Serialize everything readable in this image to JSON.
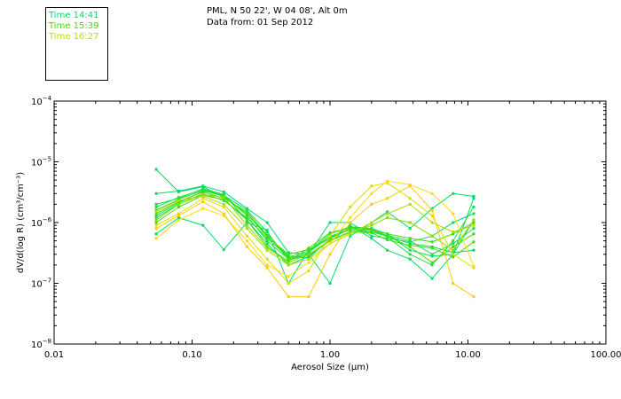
{
  "header": {
    "location": "PML, N 50 22', W 04 08', Alt 0m",
    "date": "Data from: 01 Sep 2012"
  },
  "legend": [
    {
      "label": "Time 14:41",
      "color": "#00dd66"
    },
    {
      "label": "Time 15:39",
      "color": "#44dd00"
    },
    {
      "label": "Time 16:27",
      "color": "#bbdd00"
    }
  ],
  "chart_data": {
    "type": "line",
    "title": "",
    "xlabel": "Aerosol Size (μm)",
    "ylabel": "dV/d(log R) (cm³/cm⁻³)",
    "x_scale": "log",
    "y_scale": "log",
    "xlim": [
      0.01,
      100
    ],
    "ylim": [
      1e-08,
      0.0001
    ],
    "x_ticks": [
      0.01,
      0.1,
      1,
      10,
      100
    ],
    "x_tick_labels": [
      "0.01",
      "0.10",
      "1.00",
      "10.00",
      "100.00"
    ],
    "y_ticks": [
      1e-08,
      1e-07,
      1e-06,
      1e-05,
      0.0001
    ],
    "y_tick_base": "10",
    "y_tick_exponents": [
      "−8",
      "−7",
      "−6",
      "−5",
      "−4"
    ],
    "x": [
      0.055,
      0.08,
      0.12,
      0.17,
      0.25,
      0.35,
      0.5,
      0.7,
      1.0,
      1.4,
      2.0,
      2.6,
      3.8,
      5.5,
      7.8,
      11.0
    ],
    "series": [
      {
        "name": "s1",
        "color": "#00dd66",
        "values": [
          7.5e-06,
          3.2e-06,
          3.9e-06,
          2.6e-06,
          1.4e-06,
          6e-07,
          2.8e-07,
          2.6e-07,
          5.5e-07,
          8e-07,
          7e-07,
          6e-07,
          4.5e-07,
          4e-07,
          3.2e-07,
          3.5e-07
        ]
      },
      {
        "name": "s2",
        "color": "#00dd66",
        "values": [
          2e-06,
          2.5e-06,
          3.6e-06,
          2.9e-06,
          1.1e-06,
          4.5e-07,
          2e-07,
          2.8e-07,
          5e-07,
          8.5e-07,
          8e-07,
          6.5e-07,
          3.5e-07,
          2.8e-07,
          3e-07,
          2.5e-06
        ]
      },
      {
        "name": "s3",
        "color": "#00dd66",
        "values": [
          1.3e-06,
          2.1e-06,
          3.3e-06,
          2.8e-06,
          1.6e-06,
          7e-07,
          2.4e-07,
          3e-07,
          1e-06,
          1e-06,
          6e-07,
          5.5e-07,
          4.8e-07,
          6e-07,
          1e-06,
          1.4e-06
        ]
      },
      {
        "name": "s4",
        "color": "#00dd66",
        "values": [
          3e-06,
          3.3e-06,
          4e-06,
          3.2e-06,
          1.7e-06,
          1e-06,
          3.2e-07,
          3e-07,
          1e-07,
          6e-07,
          1e-06,
          1.5e-06,
          8e-07,
          1.7e-06,
          3e-06,
          2.7e-06
        ]
      },
      {
        "name": "s5",
        "color": "#00dd66",
        "values": [
          6.5e-07,
          1.2e-06,
          9e-07,
          3.6e-07,
          1e-06,
          7.5e-07,
          1e-07,
          3.5e-07,
          5.5e-07,
          9e-07,
          5.5e-07,
          3.5e-07,
          2.5e-07,
          1.2e-07,
          3e-07,
          1.1e-06
        ]
      },
      {
        "name": "s6",
        "color": "#22dd44",
        "values": [
          1.8e-06,
          2.6e-06,
          3.5e-06,
          2.8e-06,
          1.3e-06,
          5e-07,
          2.5e-07,
          3.2e-07,
          6e-07,
          7.5e-07,
          7e-07,
          6.2e-07,
          5e-07,
          3e-07,
          4.5e-07,
          8e-07
        ]
      },
      {
        "name": "s7",
        "color": "#22dd44",
        "values": [
          1.2e-06,
          2e-06,
          3e-06,
          2.3e-06,
          1.2e-06,
          5.5e-07,
          2.7e-07,
          3.4e-07,
          6.5e-07,
          8.5e-07,
          7.5e-07,
          5.8e-07,
          3e-07,
          2e-07,
          5e-07,
          1.8e-06
        ]
      },
      {
        "name": "s8",
        "color": "#44dd00",
        "values": [
          1.6e-06,
          2.4e-06,
          3.4e-06,
          2.7e-06,
          1.4e-06,
          5.8e-07,
          3e-07,
          3.6e-07,
          5.8e-07,
          8e-07,
          7.5e-07,
          6.5e-07,
          5.5e-07,
          4.8e-07,
          6.5e-07,
          1e-06
        ]
      },
      {
        "name": "s9",
        "color": "#44dd00",
        "values": [
          1e-06,
          1.8e-06,
          2.8e-06,
          2.4e-06,
          1.1e-06,
          4e-07,
          2.3e-07,
          3.8e-07,
          6.8e-07,
          8.2e-07,
          7.8e-07,
          6e-07,
          4e-07,
          2.2e-07,
          4e-07,
          6.5e-07
        ]
      },
      {
        "name": "s10",
        "color": "#44dd00",
        "values": [
          1.4e-06,
          2.2e-06,
          3.2e-06,
          2.5e-06,
          1.5e-06,
          6.2e-07,
          2.6e-07,
          2.9e-07,
          5.2e-07,
          7e-07,
          6.8e-07,
          5.2e-07,
          4.2e-07,
          3.8e-07,
          2.7e-07,
          4.8e-07
        ]
      },
      {
        "name": "s11",
        "color": "#88dd00",
        "values": [
          1.1e-06,
          2e-06,
          2.9e-06,
          2.6e-06,
          9e-07,
          3.8e-07,
          2.2e-07,
          3e-07,
          5e-07,
          6.8e-07,
          9e-07,
          1.2e-06,
          1e-06,
          6e-07,
          3.5e-07,
          1.1e-06
        ]
      },
      {
        "name": "s12",
        "color": "#aadd00",
        "values": [
          1.5e-06,
          2.3e-06,
          2.7e-06,
          2e-06,
          8e-07,
          3.5e-07,
          2e-07,
          2.5e-07,
          4.5e-07,
          6.5e-07,
          1e-06,
          1.4e-06,
          2e-06,
          1e-06,
          7e-07,
          9e-07
        ]
      },
      {
        "name": "s13",
        "color": "#dddd00",
        "values": [
          9e-07,
          1.4e-06,
          2.5e-06,
          1.8e-06,
          6e-07,
          2.5e-07,
          1e-07,
          1.6e-07,
          6e-07,
          1.8e-06,
          4e-06,
          4.5e-06,
          2.5e-06,
          1.3e-06,
          3e-07,
          1.8e-07
        ]
      },
      {
        "name": "s14",
        "color": "#ffdd00",
        "values": [
          5.5e-07,
          1.1e-06,
          1.7e-06,
          1.3e-06,
          5e-07,
          2e-07,
          1.3e-07,
          2.2e-07,
          4.5e-07,
          1.2e-06,
          3e-06,
          4.8e-06,
          4.2e-06,
          3e-06,
          1.4e-06,
          1.9e-07
        ]
      },
      {
        "name": "s15",
        "color": "#ffcc00",
        "values": [
          8e-07,
          1.3e-06,
          2.2e-06,
          1.4e-06,
          4e-07,
          1.8e-07,
          6e-08,
          6e-08,
          3e-07,
          1e-06,
          2e-06,
          2.5e-06,
          4e-06,
          1.6e-06,
          1e-07,
          6e-08
        ]
      }
    ]
  }
}
